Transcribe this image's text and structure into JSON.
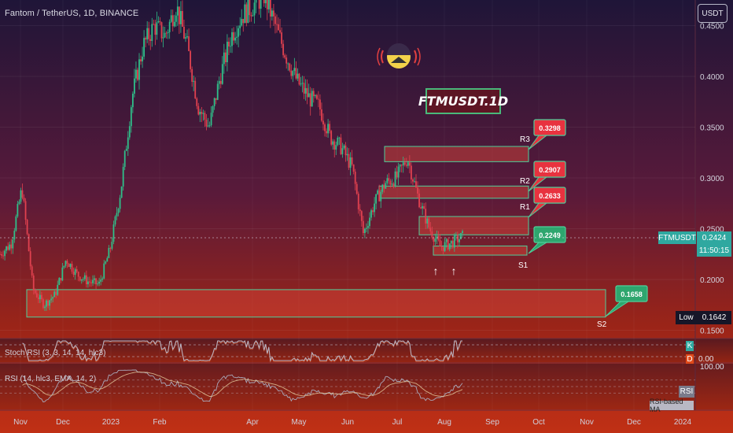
{
  "header": {
    "symbol_line": "Fantom / TetherUS, 1D, BINANCE",
    "currency": "USDT"
  },
  "title": "FTMUSDT.1D",
  "colors": {
    "bg_top": "#1d1236",
    "bg_bottom": "#b52a16",
    "candle_up": "#2fbf8a",
    "candle_down": "#e0414f",
    "zone_fill": "#e24a3a",
    "zone_border": "#4fcf9a",
    "resistance_box": "#e8323f",
    "support_box": "#2ea66e",
    "stoch": "#b8b8c8",
    "rsi": "#a9a9bb"
  },
  "price_axis": {
    "ticks": [
      "0.4500",
      "0.4000",
      "0.3500",
      "0.3000",
      "0.2500",
      "0.2000",
      "0.1500"
    ],
    "symbol_tag": "FTMUSDT",
    "last_price": "0.2424",
    "countdown": "11:50:15",
    "low_label": "Low",
    "low_value": "0.1642"
  },
  "levels": [
    {
      "name": "R3",
      "value": "0.3298",
      "kind": "resistance"
    },
    {
      "name": "R2",
      "value": "0.2907",
      "kind": "resistance"
    },
    {
      "name": "R1",
      "value": "0.2633",
      "kind": "resistance"
    },
    {
      "name": "S1",
      "value": "0.2249",
      "kind": "support"
    },
    {
      "name": "S2",
      "value": "0.1658",
      "kind": "support"
    }
  ],
  "arrows": [
    "↑",
    "↑"
  ],
  "indicators": {
    "stoch_label": "Stoch RSI (3, 3, 14, 14, hlc3)",
    "stoch_k": "K",
    "stoch_d": "D",
    "stoch_zero": "0.00",
    "rsi_label": "RSI (14, hlc3, EMA, 14, 2)",
    "rsi_top": "100.00",
    "rsi_tag": "RSI",
    "rsi_ma_tag": "RSI-based MA"
  },
  "time_axis": [
    "Nov",
    "Dec",
    "2023",
    "Feb",
    "Apr",
    "May",
    "Jun",
    "Jul",
    "Aug",
    "Sep",
    "Oct",
    "Nov",
    "Dec",
    "2024"
  ],
  "chart_data": {
    "type": "line",
    "title": "FTMUSDT.1D",
    "subtitle": "Fantom / TetherUS, 1D, BINANCE",
    "xlabel": "",
    "ylabel": "",
    "ylim": [
      0.14,
      0.46
    ],
    "grid": true,
    "x": [
      "2022-10-25",
      "2022-11-01",
      "2022-11-08",
      "2022-11-15",
      "2022-11-22",
      "2022-11-29",
      "2022-12-06",
      "2022-12-13",
      "2022-12-20",
      "2022-12-27",
      "2023-01-03",
      "2023-01-10",
      "2023-01-17",
      "2023-01-24",
      "2023-01-31",
      "2023-02-07",
      "2023-02-14",
      "2023-02-21",
      "2023-02-28",
      "2023-03-07",
      "2023-03-14",
      "2023-03-21",
      "2023-03-28",
      "2023-04-04",
      "2023-04-11",
      "2023-04-18",
      "2023-04-25",
      "2023-05-02",
      "2023-05-09",
      "2023-05-16",
      "2023-05-23",
      "2023-05-30",
      "2023-06-06",
      "2023-06-13",
      "2023-06-20",
      "2023-06-27",
      "2023-07-04",
      "2023-07-11",
      "2023-07-18",
      "2023-07-25",
      "2023-08-01",
      "2023-08-08",
      "2023-08-13"
    ],
    "series": [
      {
        "name": "FTMUSDT",
        "values": [
          0.225,
          0.235,
          0.29,
          0.19,
          0.175,
          0.185,
          0.22,
          0.205,
          0.198,
          0.195,
          0.23,
          0.29,
          0.38,
          0.43,
          0.45,
          0.44,
          0.47,
          0.43,
          0.37,
          0.35,
          0.4,
          0.44,
          0.46,
          0.47,
          0.48,
          0.45,
          0.42,
          0.395,
          0.38,
          0.37,
          0.34,
          0.33,
          0.31,
          0.245,
          0.275,
          0.295,
          0.3,
          0.32,
          0.28,
          0.25,
          0.232,
          0.236,
          0.2424
        ]
      }
    ],
    "levels": [
      {
        "name": "R3",
        "value": 0.3298
      },
      {
        "name": "R2",
        "value": 0.2907
      },
      {
        "name": "R1",
        "value": 0.2633
      },
      {
        "name": "S1",
        "value": 0.2249
      },
      {
        "name": "S2",
        "value": 0.1658
      }
    ],
    "last_price": 0.2424,
    "low": 0.1642
  }
}
